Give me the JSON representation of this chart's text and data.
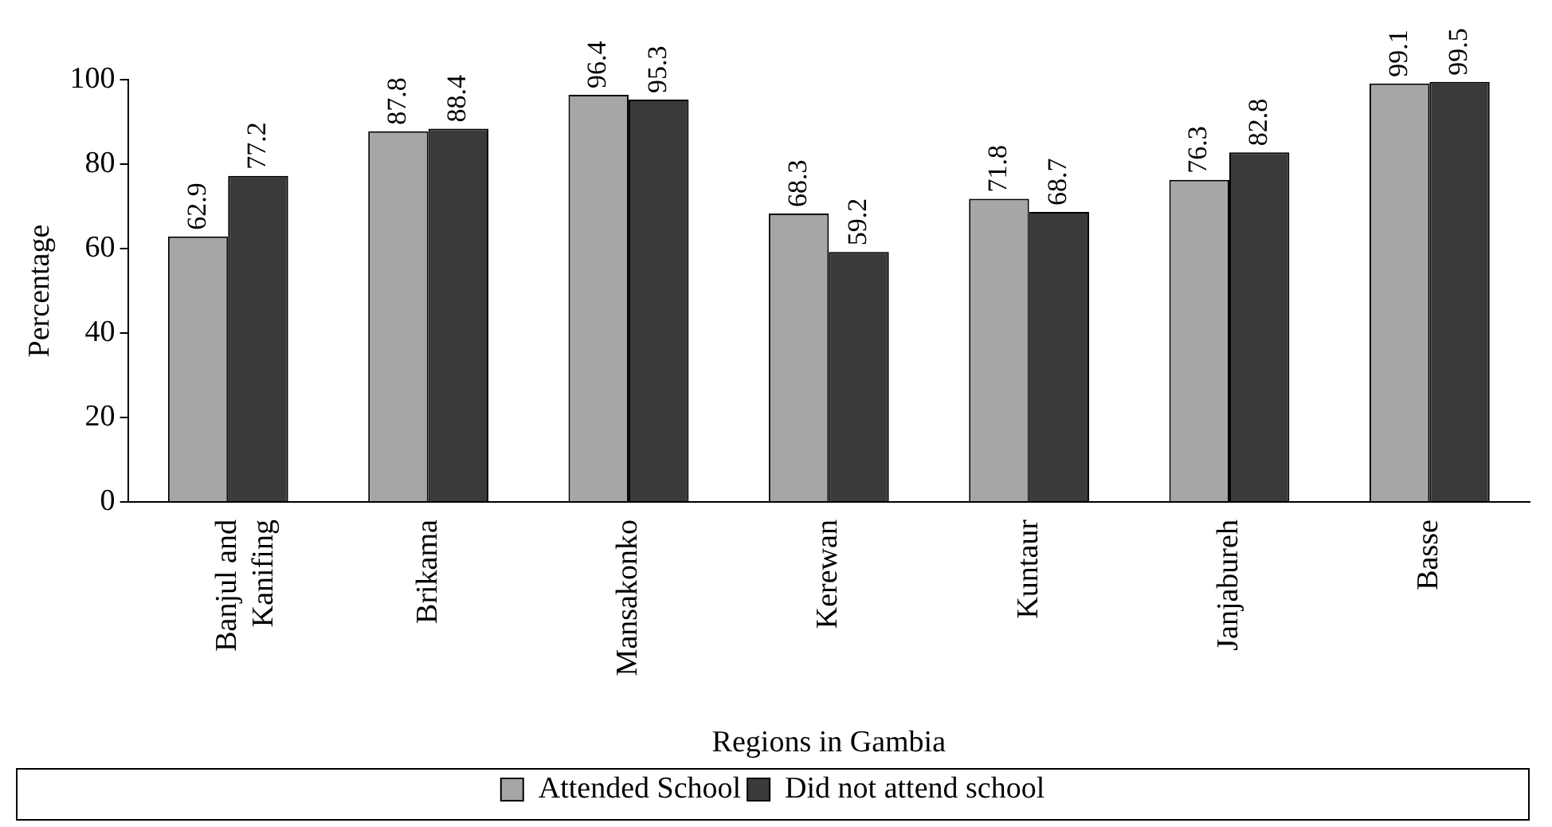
{
  "chart_data": {
    "type": "bar",
    "xlabel": "Regions in Gambia",
    "ylabel": "Percentage",
    "categories": [
      "Banjul and Kanifing",
      "Brikama",
      "Mansakonko",
      "Kerewan",
      "Kuntaur",
      "Janjabureh",
      "Basse"
    ],
    "series": [
      {
        "name": "Attended School",
        "color": "#a6a6a6",
        "values": [
          62.9,
          87.8,
          96.4,
          68.3,
          71.8,
          76.3,
          99.1
        ]
      },
      {
        "name": "Did not attend school",
        "color": "#3a3a3a",
        "values": [
          77.2,
          88.4,
          95.3,
          59.2,
          68.7,
          82.8,
          99.5
        ]
      }
    ],
    "ylim": [
      0,
      100
    ],
    "yticks": [
      0,
      20,
      40,
      60,
      80,
      100
    ],
    "grid": false,
    "legend": "bottom",
    "data_labels": true
  }
}
